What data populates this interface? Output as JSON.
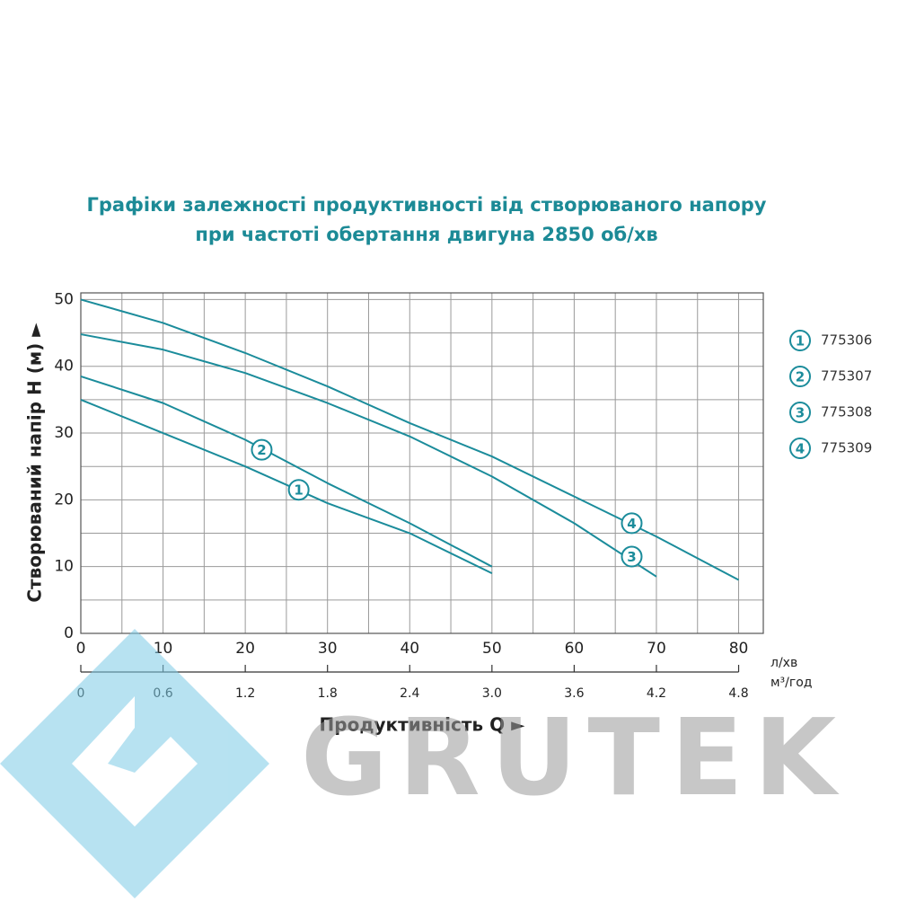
{
  "chart_data": {
    "type": "line",
    "title": [
      "Графіки залежності продуктивності від створюваного напору",
      "при частоті обертання двигуна 2850 об/хв"
    ],
    "y_label": "Створюваний напір Н (м) ►",
    "x_label": "Продуктивність  Q ►",
    "x_unit": "л/хв",
    "x2_unit": "м³/год",
    "x": [
      0,
      10,
      20,
      30,
      40,
      50,
      60,
      70,
      80
    ],
    "series": [
      {
        "name": "775306",
        "label": "1",
        "color": "#1b8c9b",
        "values": [
          35,
          30,
          25,
          19.5,
          15,
          9,
          null,
          null,
          null
        ]
      },
      {
        "name": "775307",
        "label": "2",
        "color": "#1b8c9b",
        "values": [
          38.5,
          34.5,
          29,
          22.5,
          16.5,
          10,
          null,
          null,
          null
        ]
      },
      {
        "name": "775308",
        "label": "3",
        "color": "#1b8c9b",
        "values": [
          44.8,
          42.5,
          39,
          34.5,
          29.5,
          23.5,
          16.5,
          8.5,
          null
        ]
      },
      {
        "name": "775309",
        "label": "4",
        "color": "#1b8c9b",
        "values": [
          50,
          46.5,
          42,
          37,
          31.5,
          26.5,
          20.5,
          14.5,
          8
        ]
      }
    ],
    "annotations": [
      {
        "text": "1",
        "x": 26.5,
        "y": 21.5
      },
      {
        "text": "2",
        "x": 22,
        "y": 27.5
      },
      {
        "text": "3",
        "x": 67,
        "y": 11.5
      },
      {
        "text": "4",
        "x": 67,
        "y": 16.5
      }
    ],
    "xlim": [
      0,
      83
    ],
    "ylim": [
      0,
      51
    ],
    "xticks": [
      0,
      10,
      20,
      30,
      40,
      50,
      60,
      70,
      80
    ],
    "yticks": [
      0,
      10,
      20,
      30,
      40,
      50
    ],
    "x_gridlines": [
      5,
      10,
      15,
      20,
      25,
      30,
      35,
      40,
      45,
      50,
      55,
      60,
      65,
      70,
      75,
      80
    ],
    "y_gridlines": [
      5,
      10,
      15,
      20,
      25,
      30,
      35,
      40,
      45,
      50
    ],
    "x2lim": [
      0,
      4.98
    ],
    "x2ticks": [
      0,
      0.6,
      1.2,
      1.8,
      2.4,
      {
        "value": 3,
        "label": "3.0"
      },
      3.6,
      4.2,
      4.8
    ],
    "grid": true,
    "legend": "right",
    "watermark": "GRUTEK"
  }
}
